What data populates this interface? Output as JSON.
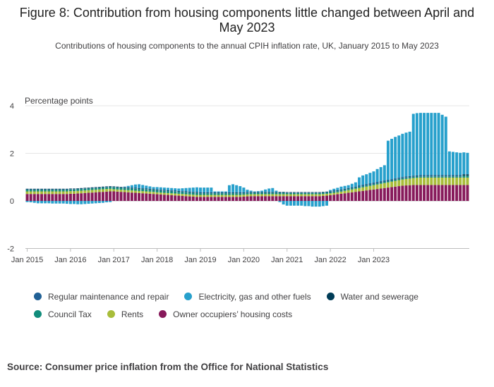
{
  "title": "Figure 8: Contribution from housing components little changed between April and May 2023",
  "subtitle": "Contributions of housing components to the annual CPIH inflation rate, UK, January 2015 to May 2023",
  "source": "Source: Consumer price inflation from the Office for National Statistics",
  "chart_data": {
    "type": "bar",
    "stacked": true,
    "ylabel": "Percentage points",
    "ylim": [
      -2,
      4
    ],
    "yticks": [
      -2,
      0,
      2,
      4
    ],
    "xtick_labels": [
      "Jan 2015",
      "Jan 2016",
      "Jan 2017",
      "Jan 2018",
      "Jan 2019",
      "Jan 2020",
      "Jan 2021",
      "Jan 2022",
      "Jan 2023"
    ],
    "grid": true,
    "legend_position": "bottom",
    "series": [
      {
        "name": "Owner occupiers’ housing costs",
        "color": "#871a5b",
        "values": [
          0.29,
          0.29,
          0.29,
          0.29,
          0.29,
          0.29,
          0.29,
          0.29,
          0.29,
          0.29,
          0.29,
          0.29,
          0.3,
          0.3,
          0.31,
          0.32,
          0.33,
          0.34,
          0.35,
          0.36,
          0.37,
          0.38,
          0.39,
          0.4,
          0.4,
          0.39,
          0.38,
          0.37,
          0.36,
          0.35,
          0.34,
          0.33,
          0.32,
          0.31,
          0.3,
          0.29,
          0.28,
          0.27,
          0.26,
          0.25,
          0.24,
          0.23,
          0.22,
          0.21,
          0.2,
          0.19,
          0.18,
          0.17,
          0.17,
          0.17,
          0.17,
          0.17,
          0.17,
          0.17,
          0.17,
          0.17,
          0.17,
          0.17,
          0.17,
          0.17,
          0.18,
          0.19,
          0.2,
          0.2,
          0.2,
          0.2,
          0.2,
          0.2,
          0.2,
          0.2,
          0.2,
          0.2,
          0.2,
          0.2,
          0.2,
          0.2,
          0.2,
          0.2,
          0.2,
          0.2,
          0.2,
          0.2,
          0.21,
          0.22,
          0.24,
          0.26,
          0.28,
          0.3,
          0.32,
          0.34,
          0.36,
          0.38,
          0.4,
          0.42,
          0.44,
          0.46,
          0.48,
          0.5,
          0.52,
          0.54,
          0.56,
          0.58,
          0.6,
          0.62,
          0.64,
          0.65,
          0.66,
          0.67,
          0.67,
          0.67,
          0.67,
          0.67,
          0.67,
          0.67,
          0.67,
          0.67,
          0.67,
          0.67,
          0.67,
          0.67,
          0.67,
          0.67,
          0.67
        ]
      },
      {
        "name": "Rents",
        "color": "#a8bd3a",
        "values": [
          0.11,
          0.11,
          0.11,
          0.11,
          0.11,
          0.11,
          0.11,
          0.11,
          0.11,
          0.11,
          0.11,
          0.11,
          0.11,
          0.11,
          0.11,
          0.11,
          0.11,
          0.11,
          0.11,
          0.11,
          0.11,
          0.11,
          0.11,
          0.11,
          0.09,
          0.09,
          0.09,
          0.09,
          0.09,
          0.09,
          0.09,
          0.09,
          0.09,
          0.09,
          0.09,
          0.09,
          0.08,
          0.08,
          0.08,
          0.08,
          0.08,
          0.08,
          0.08,
          0.08,
          0.08,
          0.08,
          0.08,
          0.08,
          0.08,
          0.08,
          0.08,
          0.08,
          0.08,
          0.08,
          0.08,
          0.08,
          0.08,
          0.08,
          0.08,
          0.08,
          0.08,
          0.08,
          0.08,
          0.08,
          0.08,
          0.08,
          0.08,
          0.08,
          0.08,
          0.08,
          0.08,
          0.08,
          0.08,
          0.08,
          0.08,
          0.08,
          0.08,
          0.08,
          0.08,
          0.08,
          0.08,
          0.08,
          0.08,
          0.08,
          0.08,
          0.08,
          0.08,
          0.09,
          0.1,
          0.11,
          0.12,
          0.13,
          0.14,
          0.15,
          0.16,
          0.17,
          0.18,
          0.19,
          0.2,
          0.21,
          0.22,
          0.23,
          0.24,
          0.25,
          0.26,
          0.27,
          0.28,
          0.29,
          0.3,
          0.31,
          0.31,
          0.31,
          0.31,
          0.31,
          0.31,
          0.31,
          0.31,
          0.31,
          0.31,
          0.31,
          0.31,
          0.31,
          0.31,
          0.31,
          0.31
        ]
      },
      {
        "name": "Council Tax",
        "color": "#118c7b",
        "values": [
          0.07,
          0.07,
          0.07,
          0.07,
          0.07,
          0.07,
          0.07,
          0.07,
          0.07,
          0.07,
          0.07,
          0.07,
          0.07,
          0.07,
          0.07,
          0.07,
          0.07,
          0.07,
          0.07,
          0.07,
          0.07,
          0.07,
          0.07,
          0.07,
          0.08,
          0.08,
          0.08,
          0.08,
          0.08,
          0.08,
          0.08,
          0.08,
          0.08,
          0.08,
          0.08,
          0.08,
          0.08,
          0.08,
          0.08,
          0.08,
          0.08,
          0.08,
          0.08,
          0.08,
          0.08,
          0.08,
          0.08,
          0.08,
          0.07,
          0.07,
          0.07,
          0.07,
          0.07,
          0.07,
          0.07,
          0.07,
          0.07,
          0.07,
          0.07,
          0.07,
          0.06,
          0.06,
          0.06,
          0.06,
          0.06,
          0.06,
          0.06,
          0.06,
          0.06,
          0.06,
          0.06,
          0.06,
          0.05,
          0.05,
          0.05,
          0.05,
          0.05,
          0.05,
          0.05,
          0.05,
          0.05,
          0.05,
          0.05,
          0.05,
          0.05,
          0.05,
          0.05,
          0.05,
          0.05,
          0.05,
          0.05,
          0.05,
          0.05,
          0.05,
          0.05,
          0.05,
          0.05,
          0.05,
          0.05,
          0.05,
          0.05,
          0.05,
          0.05,
          0.05,
          0.05,
          0.05,
          0.05,
          0.05,
          0.05,
          0.05,
          0.05,
          0.05,
          0.05,
          0.05,
          0.05,
          0.05,
          0.05,
          0.05,
          0.05,
          0.05,
          0.05,
          0.08,
          0.08
        ]
      },
      {
        "name": "Regular maintenance and repair",
        "color": "#206095",
        "values": [
          0.02,
          0.02,
          0.02,
          0.02,
          0.02,
          0.02,
          0.02,
          0.02,
          0.02,
          0.02,
          0.02,
          0.02,
          0.02,
          0.02,
          0.02,
          0.02,
          0.02,
          0.02,
          0.02,
          0.02,
          0.02,
          0.02,
          0.02,
          0.02,
          0.02,
          0.02,
          0.02,
          0.02,
          0.02,
          0.02,
          0.02,
          0.02,
          0.02,
          0.02,
          0.02,
          0.02,
          0.02,
          0.02,
          0.02,
          0.02,
          0.02,
          0.02,
          0.02,
          0.02,
          0.02,
          0.02,
          0.02,
          0.02,
          0.02,
          0.02,
          0.02,
          0.02,
          0.02,
          0.02,
          0.02,
          0.02,
          0.02,
          0.02,
          0.02,
          0.02,
          0.02,
          0.02,
          0.02,
          0.02,
          0.02,
          0.02,
          0.02,
          0.02,
          0.02,
          0.02,
          0.02,
          0.02,
          0.02,
          0.02,
          0.02,
          0.02,
          0.02,
          0.02,
          0.02,
          0.02,
          0.02,
          0.02,
          0.02,
          0.02,
          0.02,
          0.02,
          0.02,
          0.02,
          0.02,
          0.02,
          0.02,
          0.02,
          0.03,
          0.03,
          0.03,
          0.03,
          0.03,
          0.03,
          0.03,
          0.03,
          0.03,
          0.03,
          0.03,
          0.03,
          0.03,
          0.03,
          0.03,
          0.03,
          0.03,
          0.03,
          0.03,
          0.03,
          0.03,
          0.03,
          0.03,
          0.03,
          0.03,
          0.03,
          0.03,
          0.03,
          0.03
        ]
      },
      {
        "name": "Water and sewerage",
        "color": "#003c57",
        "values": [
          0.02,
          0.02,
          0.02,
          0.02,
          0.02,
          0.02,
          0.02,
          0.02,
          0.02,
          0.02,
          0.02,
          0.02,
          0.02,
          0.02,
          0.02,
          0.02,
          0.02,
          0.02,
          0.02,
          0.02,
          0.02,
          0.02,
          0.02,
          0.02,
          0.02,
          0.02,
          0.02,
          0.02,
          0.02,
          0.02,
          0.02,
          0.02,
          0.02,
          0.02,
          0.02,
          0.02,
          0.02,
          0.02,
          0.02,
          0.02,
          0.02,
          0.02,
          0.02,
          0.02,
          0.02,
          0.02,
          0.02,
          0.02,
          0.02,
          0.02,
          0.02,
          0.02,
          0.02,
          0.02,
          0.02,
          0.02,
          0.02,
          0.02,
          0.02,
          0.02,
          0.02,
          0.02,
          0.02,
          0.02,
          0.02,
          0.02,
          0.02,
          0.02,
          0.02,
          0.02,
          0.02,
          0.02,
          0.02,
          0.02,
          0.02,
          0.02,
          0.02,
          0.02,
          0.02,
          0.02,
          0.02,
          0.02,
          0.02,
          0.02,
          0.02,
          0.02,
          0.02,
          0.02,
          0.02,
          0.02,
          0.02,
          0.02,
          0.02,
          0.02,
          0.02,
          0.02,
          0.02,
          0.02,
          0.02,
          0.02,
          0.02,
          0.02,
          0.02,
          0.02,
          0.02,
          0.02,
          0.02,
          0.02,
          0.02,
          0.02,
          0.02,
          0.02,
          0.02,
          0.02,
          0.02,
          0.02,
          0.02,
          0.02,
          0.02,
          0.02,
          0.02,
          0.06,
          0.06
        ]
      },
      {
        "name": "Electricity, gas and other fuels",
        "color": "#27a0cc",
        "values": [
          -0.05,
          -0.06,
          -0.08,
          -0.1,
          -0.1,
          -0.1,
          -0.1,
          -0.11,
          -0.11,
          -0.11,
          -0.11,
          -0.12,
          -0.13,
          -0.13,
          -0.14,
          -0.14,
          -0.13,
          -0.12,
          -0.11,
          -0.1,
          -0.09,
          -0.08,
          -0.06,
          -0.05,
          0.0,
          0.0,
          0.0,
          0.02,
          0.06,
          0.1,
          0.14,
          0.16,
          0.14,
          0.12,
          0.1,
          0.08,
          0.1,
          0.1,
          0.1,
          0.1,
          0.1,
          0.1,
          0.1,
          0.12,
          0.14,
          0.16,
          0.18,
          0.2,
          0.2,
          0.2,
          0.2,
          0.2,
          0.04,
          0.04,
          0.04,
          0.04,
          0.3,
          0.34,
          0.3,
          0.26,
          0.2,
          0.1,
          0.05,
          0.02,
          0.03,
          0.05,
          0.1,
          0.14,
          0.16,
          0.05,
          -0.05,
          -0.15,
          -0.2,
          -0.2,
          -0.2,
          -0.2,
          -0.2,
          -0.22,
          -0.22,
          -0.24,
          -0.24,
          -0.24,
          -0.22,
          -0.2,
          0.05,
          0.08,
          0.1,
          0.12,
          0.12,
          0.12,
          0.15,
          0.18,
          0.35,
          0.4,
          0.42,
          0.45,
          0.48,
          0.55,
          0.6,
          0.65,
          1.65,
          1.7,
          1.75,
          1.78,
          1.82,
          1.85,
          1.87,
          2.6,
          2.62,
          2.62,
          2.62,
          2.62,
          2.62,
          2.62,
          2.62,
          2.54,
          2.46,
          1.0,
          0.98,
          0.96,
          0.94,
          0.92,
          0.9,
          0.9,
          0.9
        ]
      }
    ]
  }
}
